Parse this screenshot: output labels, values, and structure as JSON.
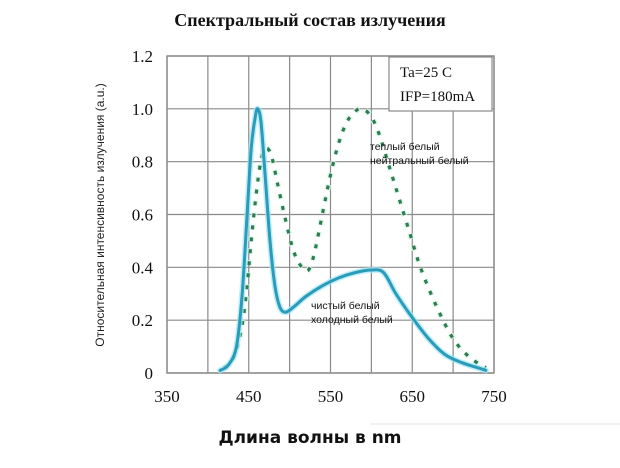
{
  "chart_data": {
    "type": "line",
    "title": "Спектральный состав излучения",
    "xlabel": "Длина волны  в nm",
    "ylabel": "Относительная интенсивность излучения (a.u.)",
    "xlim": [
      350,
      750
    ],
    "ylim": [
      0,
      1.2
    ],
    "grid": true,
    "x_ticks": [
      350,
      450,
      550,
      650,
      750
    ],
    "x_tick_labels": [
      "350",
      "450",
      "550",
      "650",
      "750"
    ],
    "x_gridlines": [
      350,
      400,
      450,
      500,
      550,
      600,
      650,
      700,
      750
    ],
    "y_ticks": [
      0,
      0.2,
      0.4,
      0.6,
      0.8,
      1.0,
      1.2
    ],
    "y_tick_labels": [
      "0",
      "0.2",
      "0.4",
      "0.6",
      "0.8",
      "1.0",
      "1.2"
    ],
    "conditions": [
      "Ta=25 C",
      "IFP=180mA"
    ],
    "series": [
      {
        "name": "чистый белый / холодный белый",
        "style": "solid",
        "color": "#2a9bb8",
        "x": [
          415,
          425,
          435,
          442,
          448,
          453,
          458,
          461,
          465,
          470,
          476,
          482,
          488,
          495,
          505,
          520,
          540,
          560,
          580,
          600,
          615,
          630,
          650,
          670,
          690,
          710,
          730,
          740
        ],
        "values": [
          0.01,
          0.03,
          0.1,
          0.3,
          0.6,
          0.85,
          0.97,
          1.0,
          0.95,
          0.75,
          0.5,
          0.33,
          0.25,
          0.23,
          0.25,
          0.29,
          0.33,
          0.36,
          0.38,
          0.39,
          0.38,
          0.3,
          0.21,
          0.13,
          0.07,
          0.04,
          0.02,
          0.01
        ]
      },
      {
        "name": "теплый белый / нейтральный белый",
        "style": "dotted",
        "color": "#2e7d4f",
        "x": [
          420,
          430,
          440,
          447,
          453,
          460,
          466,
          472,
          478,
          485,
          495,
          505,
          515,
          523,
          530,
          540,
          550,
          560,
          570,
          580,
          589,
          600,
          610,
          620,
          630,
          645,
          660,
          680,
          700,
          720,
          740
        ],
        "values": [
          0.02,
          0.05,
          0.15,
          0.3,
          0.5,
          0.7,
          0.82,
          0.85,
          0.82,
          0.72,
          0.58,
          0.46,
          0.4,
          0.39,
          0.45,
          0.6,
          0.75,
          0.87,
          0.95,
          0.99,
          1.0,
          0.97,
          0.9,
          0.8,
          0.7,
          0.55,
          0.4,
          0.25,
          0.13,
          0.06,
          0.02
        ]
      }
    ],
    "annotations": [
      {
        "text": "теплый белый",
        "x": 580,
        "y": 0.86
      },
      {
        "text": "нейтральный белый",
        "x": 580,
        "y": 0.8
      },
      {
        "text": "чистый белый",
        "x": 537,
        "y": 0.25
      },
      {
        "text": "холодный белый",
        "x": 537,
        "y": 0.19
      }
    ]
  },
  "labels": {
    "title": "Спектральный состав излучения",
    "xlabel": "Длина волны  в nm",
    "ylabel": "Относительная интенсивность излучения (a.u.)",
    "cond1": "Ta=25 C",
    "cond2": "IFP=180mA",
    "ann_warm1": "теплый белый",
    "ann_warm2": "нейтральный белый",
    "ann_cold1": "чистый белый",
    "ann_cold2": "холодный белый"
  }
}
